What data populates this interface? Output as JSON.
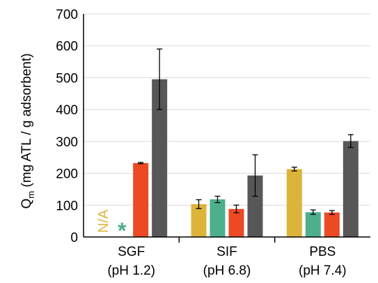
{
  "chart_data": {
    "type": "bar",
    "ylabel_main": "Q",
    "ylabel_sub": "m",
    "ylabel_rest": " (mg ATL / g adsorbent)",
    "ylim": [
      0,
      700
    ],
    "yticks": [
      "0",
      "100",
      "200",
      "300",
      "400",
      "500",
      "600",
      "700"
    ],
    "grid": true,
    "categories": [
      {
        "line1": "SGF",
        "line2": "(pH 1.2)"
      },
      {
        "line1": "SIF",
        "line2": "(pH 6.8)"
      },
      {
        "line1": "PBS",
        "line2": "(pH 7.4)"
      }
    ],
    "series": [
      {
        "color": "#DDB43A",
        "values": [
          null,
          103,
          213
        ],
        "errors": [
          null,
          14,
          6
        ]
      },
      {
        "color": "#4DAF8C",
        "values": [
          null,
          118,
          78
        ],
        "errors": [
          null,
          10,
          7
        ]
      },
      {
        "color": "#EC4A24",
        "values": [
          232,
          88,
          77
        ],
        "errors": [
          2,
          12,
          6
        ]
      },
      {
        "color": "#575757",
        "values": [
          495,
          193,
          301
        ],
        "errors": [
          95,
          65,
          20
        ]
      }
    ],
    "annotations": [
      {
        "text": "N/A",
        "category": 0,
        "series": 0,
        "color": "#DDB43A"
      },
      {
        "text": "*",
        "category": 0,
        "series": 1,
        "color": "#4DAF8C"
      }
    ]
  }
}
